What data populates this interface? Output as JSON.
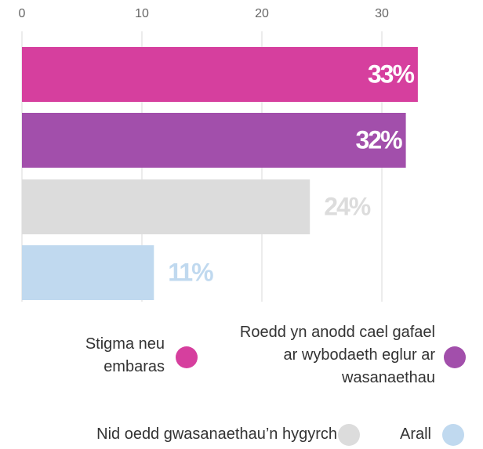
{
  "chart_data": {
    "type": "bar",
    "orientation": "horizontal",
    "categories": [
      "Stigma neu embaras",
      "Roedd yn anodd cael gafael ar wybodaeth eglur ar wasanaethau",
      "Nid oedd gwasanaethau’n hygyrch",
      "Arall"
    ],
    "values": [
      33,
      32,
      24,
      11
    ],
    "value_labels": [
      "33%",
      "32%",
      "24%",
      "11%"
    ],
    "colors": [
      "#d63f9e",
      "#a24fab",
      "#dcdcdc",
      "#c0d9ef"
    ],
    "xlim": [
      0,
      35
    ],
    "xticks": [
      0,
      10,
      20,
      30
    ],
    "grid": true,
    "legend": "bottom"
  }
}
